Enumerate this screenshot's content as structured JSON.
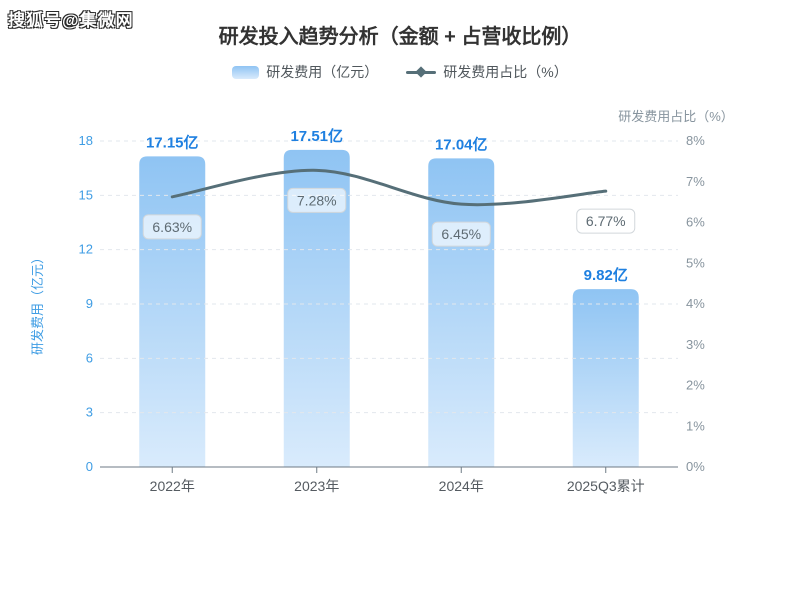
{
  "page": {
    "watermark": "搜狐号@集微网"
  },
  "chart_data": {
    "type": "bar",
    "title": "研发投入趋势分析（金额 + 占营收比例）",
    "categories": [
      "2022年",
      "2023年",
      "2024年",
      "2025Q3累计"
    ],
    "series": [
      {
        "name": "研发费用（亿元）",
        "type": "bar",
        "axis": "left",
        "values": [
          17.15,
          17.51,
          17.04,
          9.82
        ],
        "labels": [
          "17.15亿",
          "17.51亿",
          "17.04亿",
          "9.82亿"
        ]
      },
      {
        "name": "研发费用占比（%）",
        "type": "line",
        "axis": "right",
        "smooth": true,
        "values": [
          6.63,
          7.28,
          6.45,
          6.77
        ],
        "labels": [
          "6.63%",
          "7.28%",
          "6.45%",
          "6.77%"
        ]
      }
    ],
    "y_left": {
      "name": "研发费用（亿元）",
      "min": 0,
      "max": 18,
      "step": 3,
      "tick_labels": [
        "0",
        "3",
        "6",
        "9",
        "12",
        "15",
        "18"
      ]
    },
    "y_right": {
      "name": "研发费用占比（%）",
      "min": 0,
      "max": 8,
      "step": 1,
      "tick_labels": [
        "0%",
        "1%",
        "2%",
        "3%",
        "4%",
        "5%",
        "6%",
        "7%",
        "8%"
      ]
    },
    "legend": [
      "研发费用（亿元）",
      "研发费用占比（%）"
    ],
    "legend_position": "top",
    "grid": true,
    "colors": {
      "bar_gradient_top": "#8fc4f3",
      "bar_gradient_bottom": "#d9ebfc",
      "bar_value_label": "#1f80e0",
      "left_axis_text": "#3f9de4",
      "right_axis_text": "#87949e",
      "x_axis_text": "#555b61",
      "axis_line": "#6e7a85",
      "grid_line": "#e2e7ed",
      "trend_line": "#566f78",
      "badge_text": "#5e6b73",
      "badge_border": "#d2d7db",
      "badge_bg": "rgba(255,255,255,0.65)",
      "title_text": "#333333"
    }
  }
}
